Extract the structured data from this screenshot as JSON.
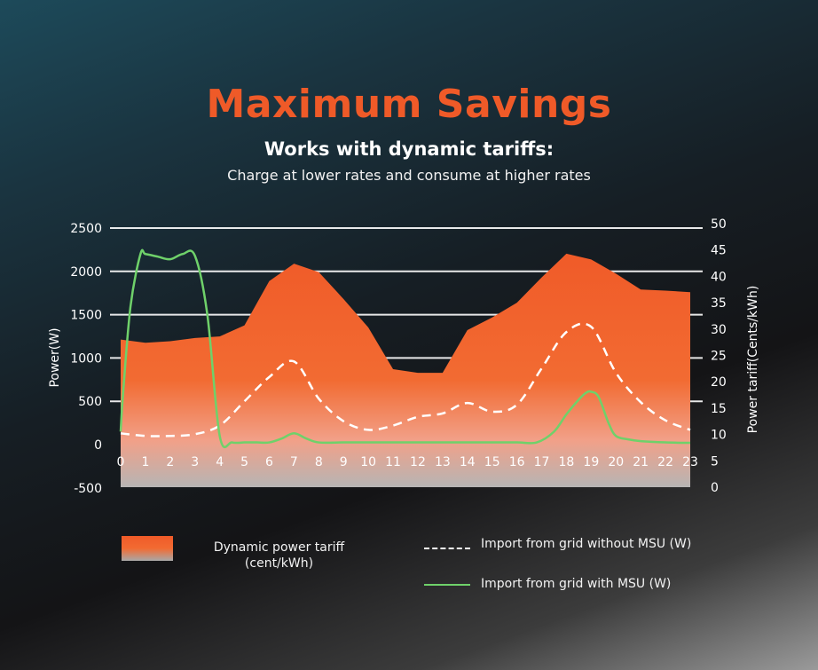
{
  "title": "Maximum Savings",
  "subtitle": "Works with dynamic tariffs:",
  "tagline": "Charge at lower rates and consume at higher rates",
  "colors": {
    "accent": "#ef5a28",
    "tariff_fill": "#f26b32",
    "msu_line": "#6fd16a",
    "no_msu_line": "#ffffff"
  },
  "chart_data": {
    "type": "line",
    "x": [
      0,
      1,
      2,
      3,
      4,
      5,
      6,
      7,
      8,
      9,
      10,
      11,
      12,
      13,
      14,
      15,
      16,
      17,
      18,
      19,
      20,
      21,
      22,
      23
    ],
    "x_tick_labels": [
      "0",
      "1",
      "2",
      "3",
      "4",
      "5",
      "6",
      "7",
      "8",
      "9",
      "10",
      "11",
      "12",
      "13",
      "14",
      "15",
      "16",
      "17",
      "18",
      "19",
      "20",
      "21",
      "22",
      "23"
    ],
    "ylabel": "Power(W)",
    "ylim": [
      -500,
      2500
    ],
    "y_ticks": [
      -500,
      0,
      500,
      1000,
      1500,
      2000,
      2500
    ],
    "y_tick_labels": [
      "-500",
      "0",
      "500",
      "1000",
      "1500",
      "2000",
      "2500"
    ],
    "y2label": "Power tariff(Cents/kWh)",
    "y2lim": [
      0,
      50
    ],
    "y2_ticks": [
      0,
      5,
      10,
      15,
      20,
      25,
      30,
      35,
      40,
      45,
      50
    ],
    "y2_tick_labels": [
      "0",
      "5",
      "10",
      "15",
      "20",
      "25",
      "30",
      "35",
      "40",
      "45",
      "50"
    ],
    "grid": true,
    "series": [
      {
        "name": "Dynamic power tariff (cent/kWh)",
        "type": "area",
        "axis": "right",
        "x": [
          0,
          1,
          2,
          3,
          4,
          5,
          6,
          7,
          8,
          9,
          10,
          11,
          12,
          13,
          14,
          15,
          16,
          17,
          18,
          19,
          20,
          21,
          22,
          23
        ],
        "values": [
          28,
          27.4,
          27.7,
          28.3,
          28.6,
          30.7,
          39.1,
          42.4,
          40.8,
          35.7,
          30.3,
          22.4,
          21.7,
          21.7,
          29.8,
          32.2,
          35,
          39.8,
          44.3,
          43.2,
          40.5,
          37.5,
          37.3,
          37
        ]
      },
      {
        "name": "Import from grid without MSU (W)",
        "type": "line",
        "style": "dashed",
        "axis": "left",
        "x": [
          0,
          1,
          2,
          3,
          4,
          5,
          6,
          7,
          8,
          9,
          10,
          11,
          12,
          13,
          14,
          15,
          16,
          17,
          18,
          19,
          20,
          21,
          22,
          23
        ],
        "values": [
          130,
          100,
          100,
          120,
          220,
          500,
          780,
          960,
          530,
          270,
          170,
          220,
          320,
          360,
          480,
          380,
          460,
          880,
          1300,
          1360,
          830,
          490,
          280,
          170
        ]
      },
      {
        "name": "Import from grid with MSU (W)",
        "type": "line",
        "style": "solid",
        "axis": "left",
        "x": [
          0,
          0.1,
          0.4,
          0.8,
          1,
          1.5,
          2,
          2.5,
          3,
          3.5,
          4,
          4.5,
          5,
          5.5,
          6,
          6.5,
          7,
          7.5,
          8,
          9,
          10,
          11,
          12,
          13,
          14,
          15,
          16,
          16.8,
          17.5,
          18,
          18.5,
          18.8,
          19,
          19.3,
          19.7,
          20,
          20.5,
          21,
          22,
          23
        ],
        "values": [
          150,
          600,
          1600,
          2200,
          2200,
          2170,
          2140,
          2200,
          2180,
          1500,
          100,
          25,
          25,
          25,
          25,
          70,
          130,
          70,
          25,
          25,
          25,
          25,
          25,
          25,
          25,
          25,
          25,
          25,
          150,
          350,
          520,
          600,
          610,
          550,
          250,
          100,
          60,
          40,
          25,
          20
        ]
      }
    ]
  },
  "legend": {
    "tariff_label": "Dynamic power tariff (cent/kWh)",
    "without_msu_label": "Import from grid without MSU (W)",
    "with_msu_label": "Import from grid with MSU (W)"
  }
}
